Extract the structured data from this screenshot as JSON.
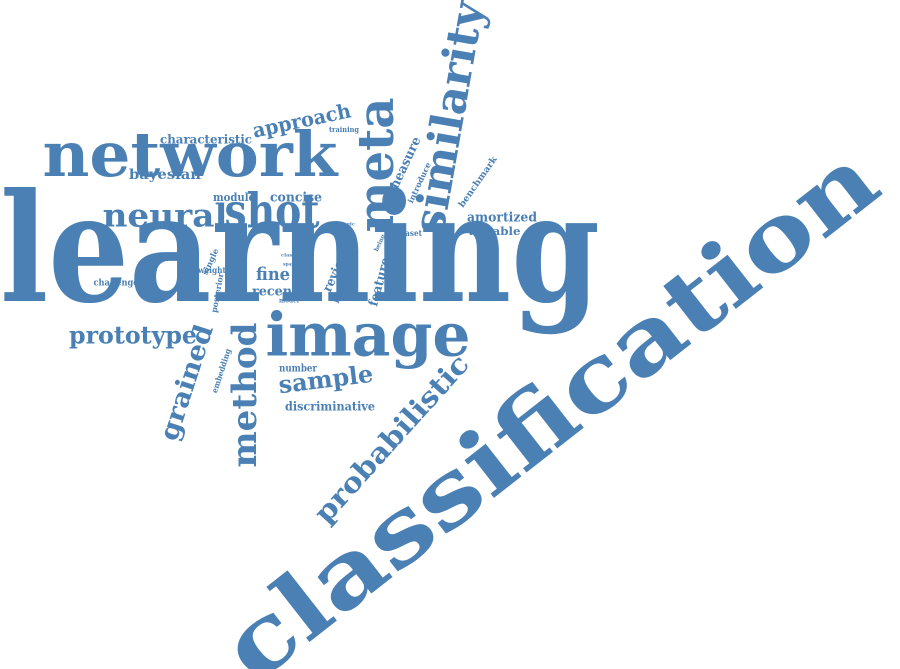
{
  "color": "#4a80b4",
  "words": [
    "learning",
    "classification",
    "network",
    "image",
    "shot",
    "meta",
    "similarity",
    "probabilistic",
    "method",
    "neural",
    "grained",
    "prototype",
    "sample",
    "approach",
    "fine",
    "measure",
    "bayesian",
    "amortized",
    "variable",
    "concise",
    "review",
    "feature",
    "recent",
    "discriminative",
    "characteristic",
    "module",
    "benchmark",
    "introduce",
    "embedding",
    "number",
    "single",
    "posterior",
    "weight",
    "challenge",
    "more",
    "dataset",
    "training",
    "model",
    "being",
    "logic",
    "class",
    "sparse"
  ]
}
